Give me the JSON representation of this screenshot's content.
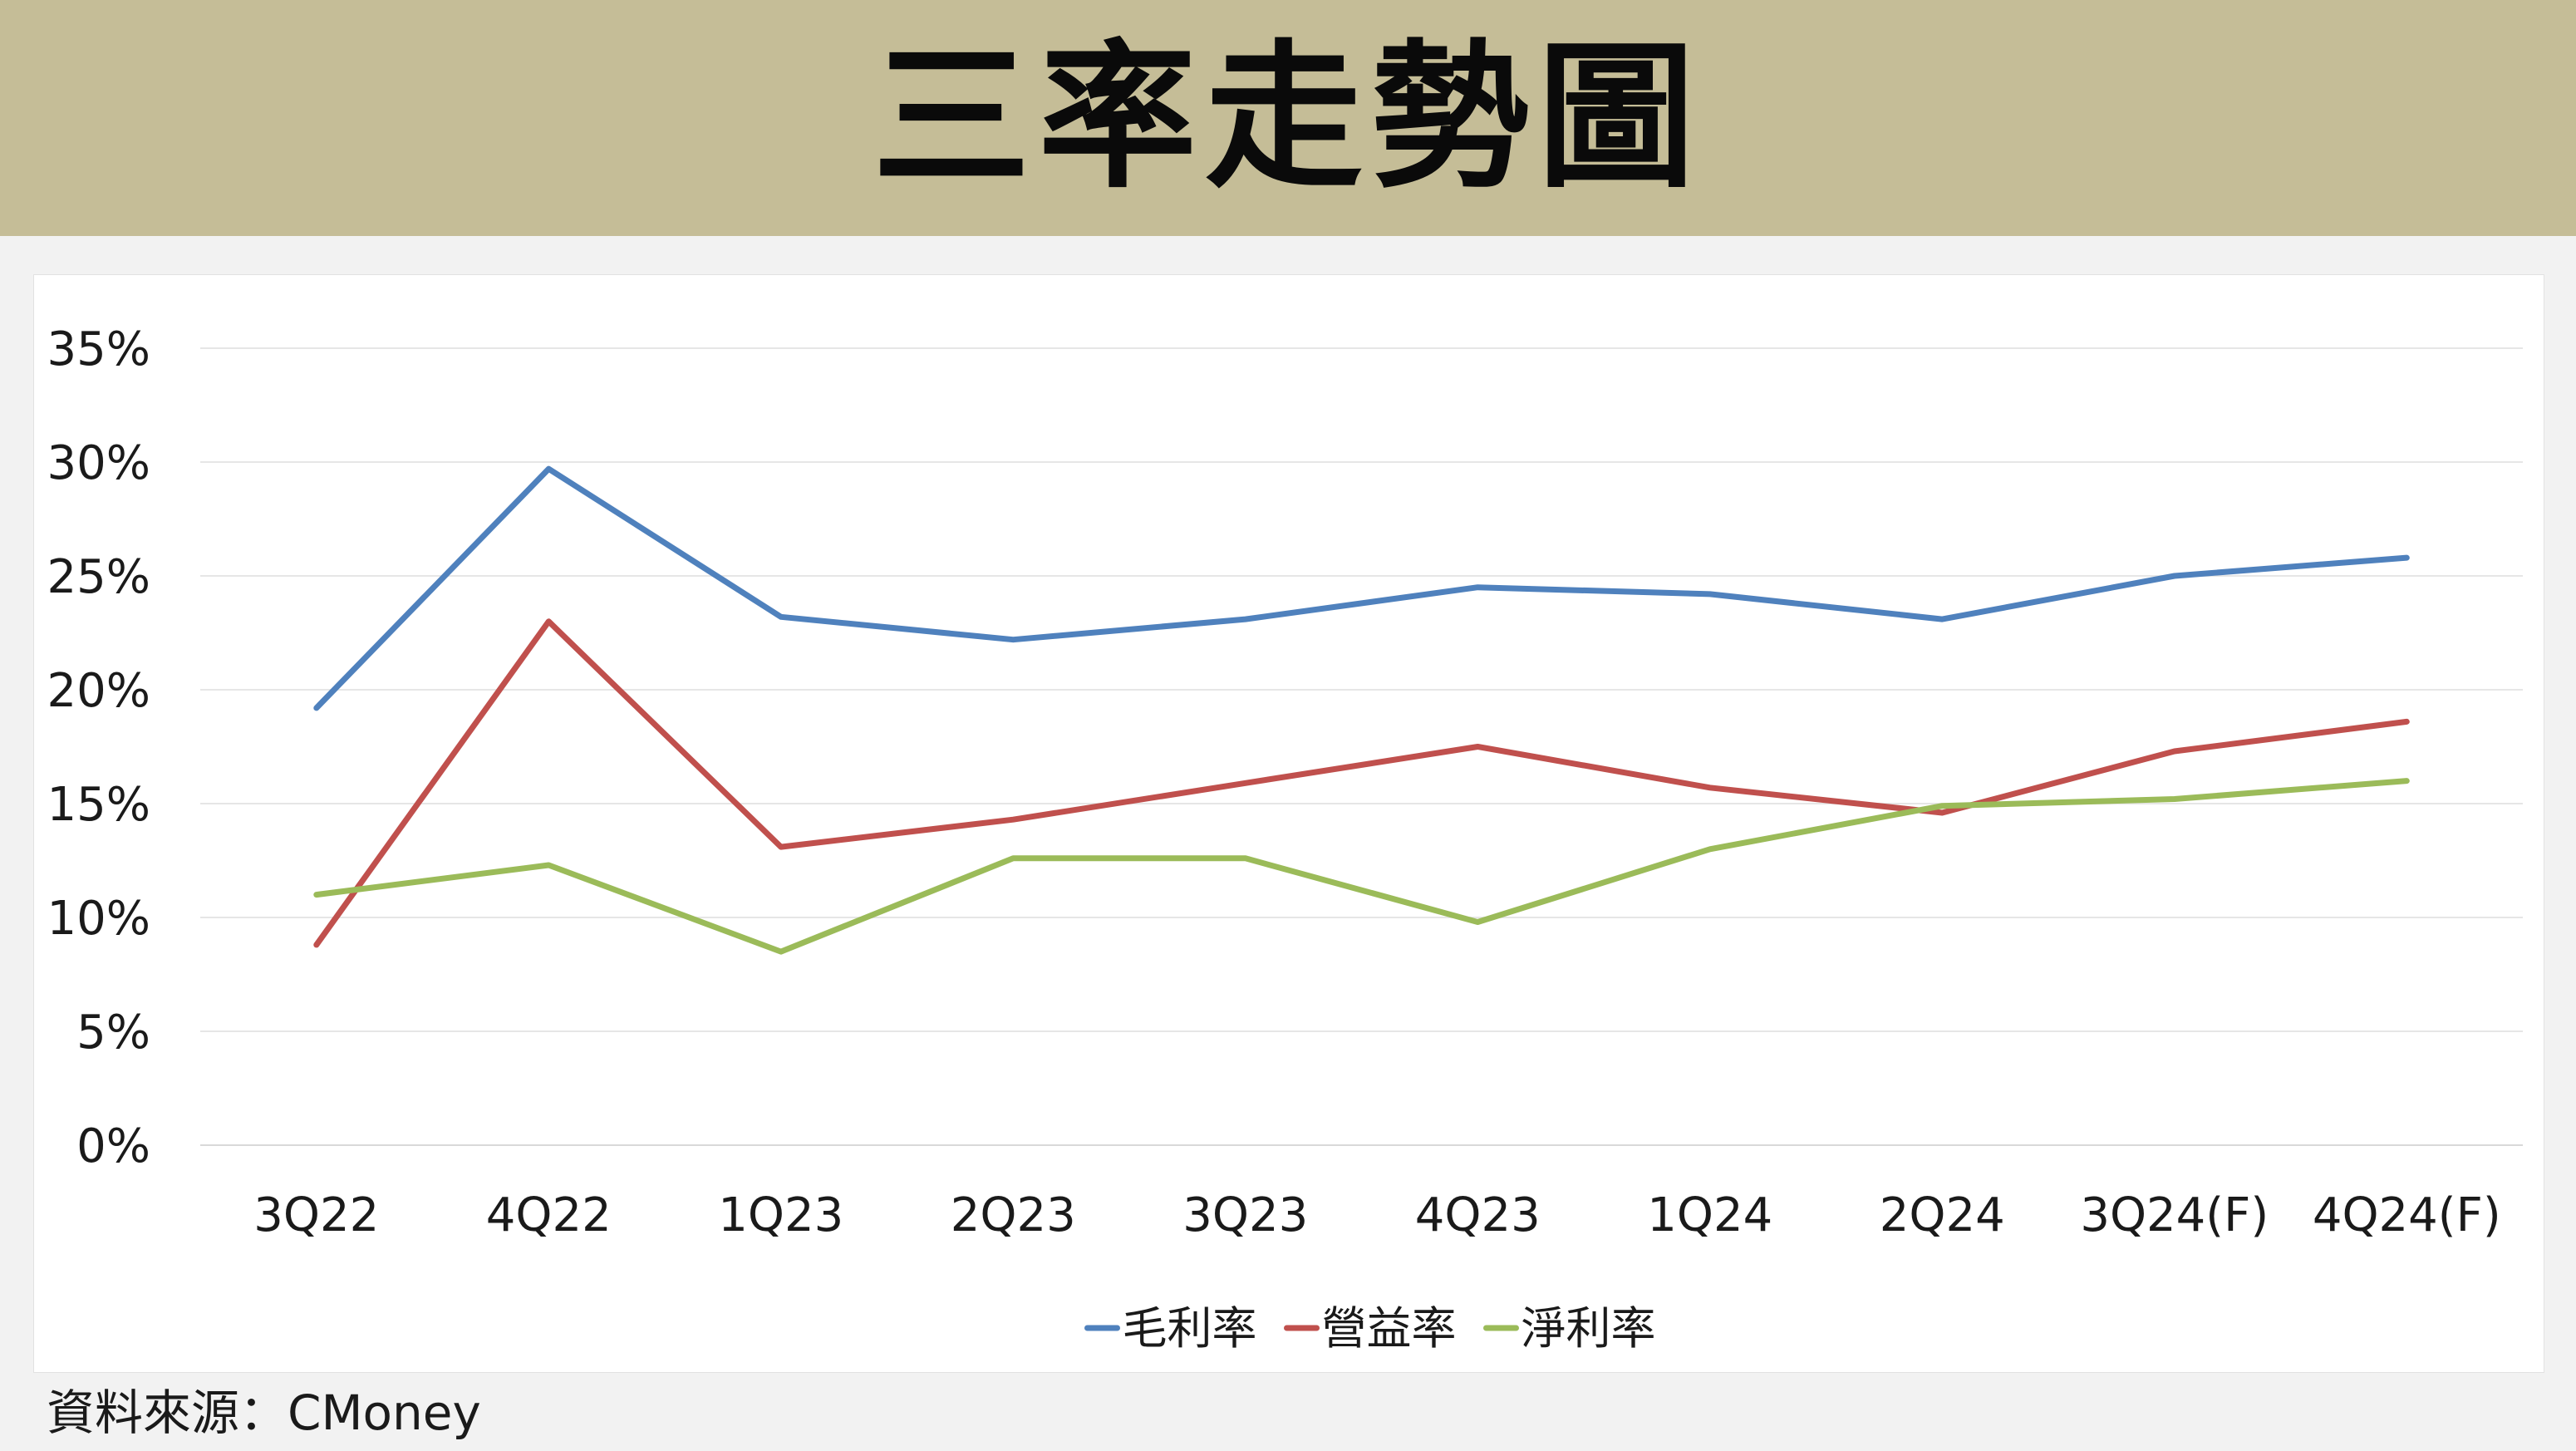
{
  "header": {
    "title": "三率走勢圖"
  },
  "footer": {
    "source": "資料來源：CMoney"
  },
  "chart_data": {
    "type": "line",
    "title": "三率走勢圖",
    "xlabel": "",
    "ylabel": "",
    "categories": [
      "3Q22",
      "4Q22",
      "1Q23",
      "2Q23",
      "3Q23",
      "4Q23",
      "1Q24",
      "2Q24",
      "3Q24(F)",
      "4Q24(F)"
    ],
    "y_ticks": [
      "0%",
      "5%",
      "10%",
      "15%",
      "20%",
      "25%",
      "30%",
      "35%"
    ],
    "ylim": [
      0,
      35
    ],
    "grid": true,
    "legend_position": "bottom",
    "series": [
      {
        "name": "毛利率",
        "color": "#4f81bd",
        "values": [
          19.2,
          29.7,
          23.2,
          22.2,
          23.1,
          24.5,
          24.2,
          23.1,
          25.0,
          25.8
        ]
      },
      {
        "name": "營益率",
        "color": "#c0504d",
        "values": [
          8.8,
          23.0,
          13.1,
          14.3,
          15.9,
          17.5,
          15.7,
          14.6,
          17.3,
          18.6
        ]
      },
      {
        "name": "淨利率",
        "color": "#9bbb59",
        "values": [
          11.0,
          12.3,
          8.5,
          12.6,
          12.6,
          9.8,
          13.0,
          14.9,
          15.2,
          16.0
        ]
      }
    ]
  }
}
